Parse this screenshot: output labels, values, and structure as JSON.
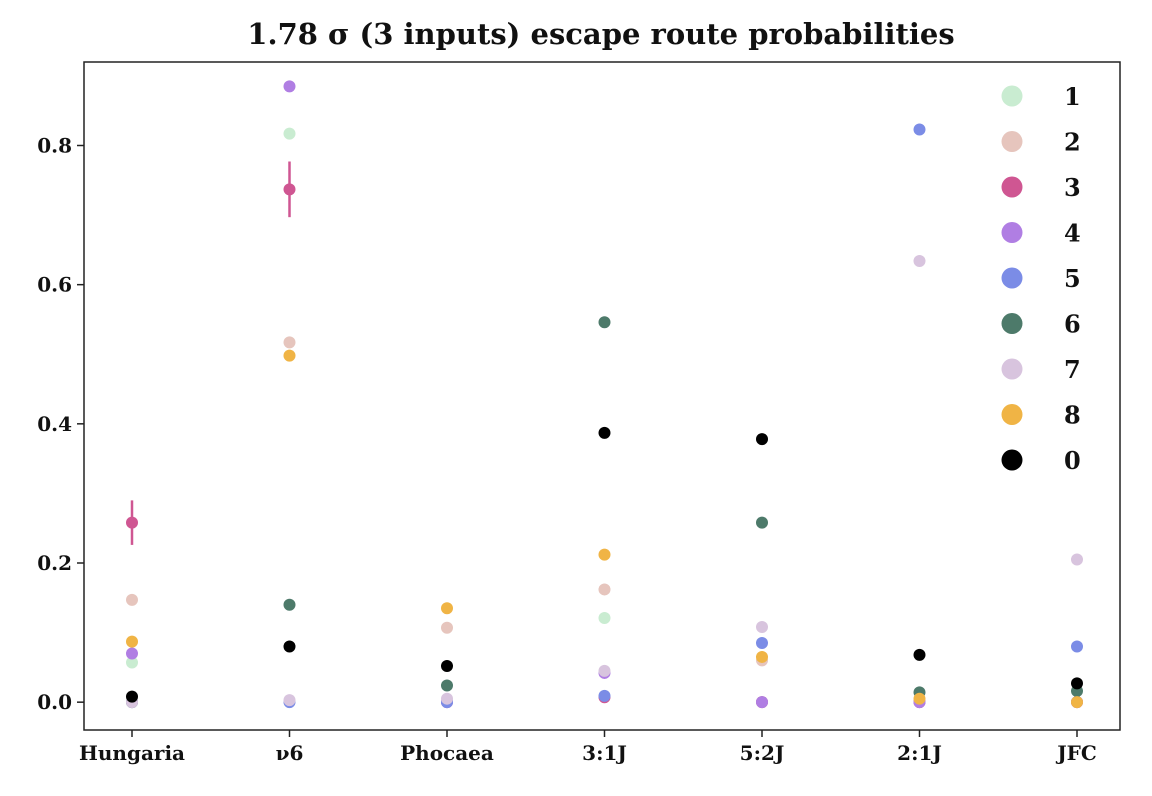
{
  "chart_data": {
    "type": "scatter",
    "title": "1.78 σ (3 inputs) escape route probabilities",
    "xlabel": "",
    "ylabel": "",
    "categories": [
      "Hungaria",
      "ν6",
      "Phocaea",
      "3:1J",
      "5:2J",
      "2:1J",
      "JFC"
    ],
    "ylim": [
      -0.04,
      0.92
    ],
    "yticks": [
      0.0,
      0.2,
      0.4,
      0.6,
      0.8
    ],
    "ytick_labels": [
      "0.0",
      "0.2",
      "0.4",
      "0.6",
      "0.8"
    ],
    "grid": false,
    "legend_position": "top-right",
    "series": [
      {
        "name": "1",
        "color": "#c9ecd1",
        "values": [
          0.057,
          0.817,
          0.0,
          0.121,
          0.0,
          0.0,
          0.0
        ]
      },
      {
        "name": "2",
        "color": "#e6c5bd",
        "values": [
          0.147,
          0.517,
          0.107,
          0.162,
          0.06,
          0.0,
          0.0
        ]
      },
      {
        "name": "3",
        "color": "#cf5692",
        "values": [
          0.258,
          0.737,
          0.0,
          0.007,
          0.0,
          0.0,
          0.0
        ],
        "errors": [
          0.032,
          0.04,
          null,
          null,
          null,
          null,
          null
        ]
      },
      {
        "name": "4",
        "color": "#b07ee3",
        "values": [
          0.07,
          0.885,
          0.0,
          0.042,
          0.0,
          0.0,
          0.0
        ]
      },
      {
        "name": "5",
        "color": "#7b8ce6",
        "values": [
          0.0,
          0.0,
          0.0,
          0.009,
          0.085,
          0.823,
          0.08
        ]
      },
      {
        "name": "6",
        "color": "#4d7a6a",
        "values": [
          0.0,
          0.14,
          0.024,
          0.546,
          0.258,
          0.014,
          0.016
        ]
      },
      {
        "name": "7",
        "color": "#d8c4de",
        "values": [
          0.0,
          0.003,
          0.005,
          0.045,
          0.108,
          0.634,
          0.205
        ]
      },
      {
        "name": "8",
        "color": "#f0b445",
        "values": [
          0.087,
          0.498,
          0.135,
          0.212,
          0.065,
          0.005,
          0.0
        ]
      },
      {
        "name": "0",
        "color": "#000000",
        "values": [
          0.008,
          0.08,
          0.052,
          0.387,
          0.378,
          0.068,
          0.027
        ]
      }
    ]
  }
}
